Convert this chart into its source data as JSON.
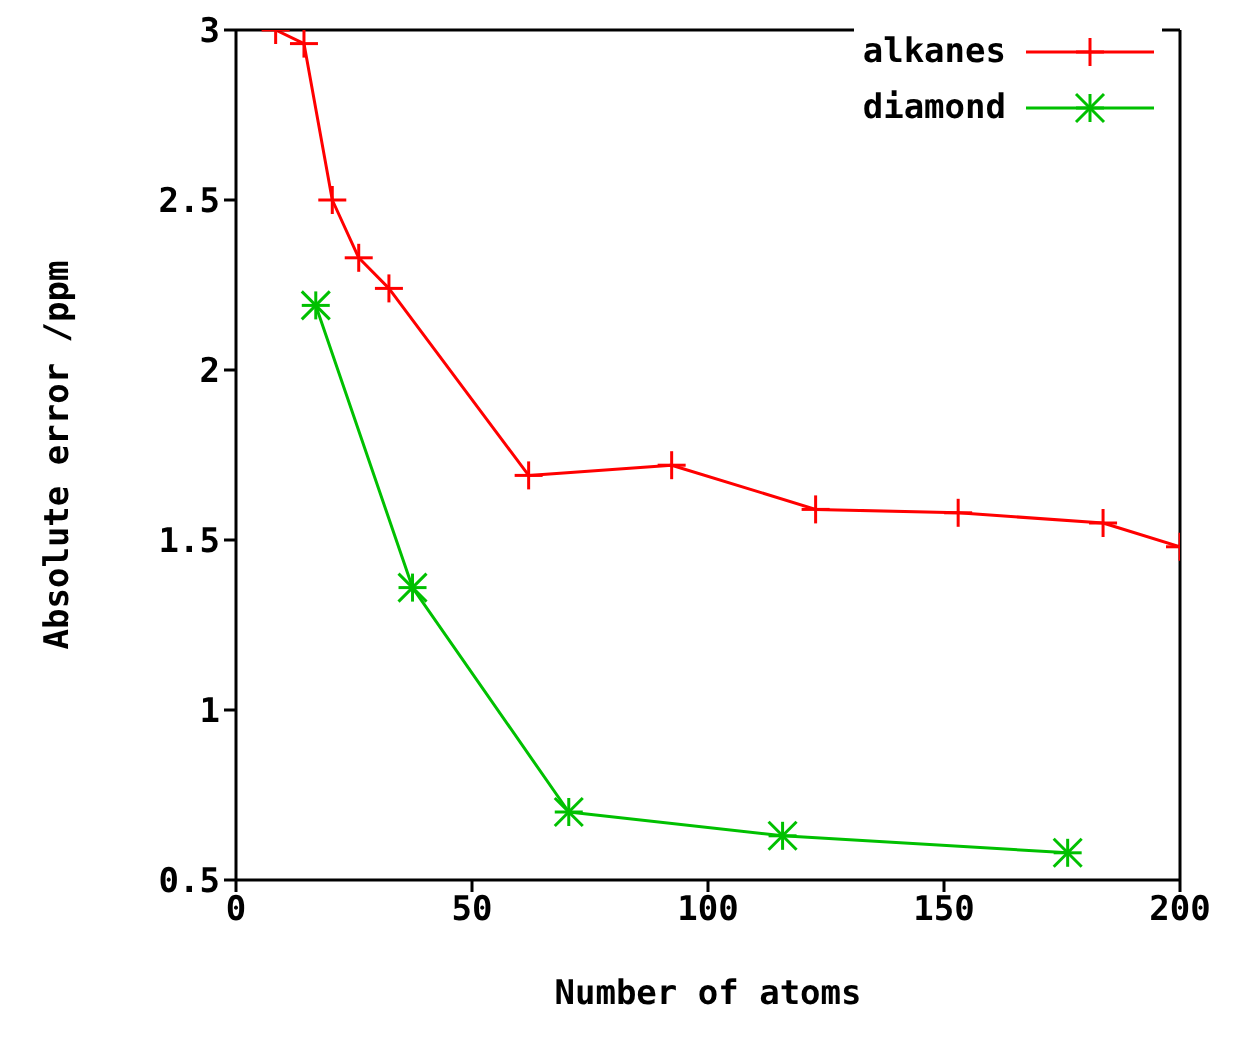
{
  "chart_data": {
    "type": "line",
    "xlabel": "Number of atoms",
    "ylabel": "Absolute error /ppm",
    "xlim": [
      0,
      200
    ],
    "xticks": [
      0,
      50,
      100,
      150,
      200
    ],
    "ylim": [
      0.5,
      3
    ],
    "yticks": [
      0.5,
      1,
      1.5,
      2,
      2.5,
      3
    ],
    "grid": false,
    "legend": "top right",
    "series": [
      {
        "name": "alkanes",
        "color": "#ff0000",
        "marker": "cross",
        "x": [
          8.4,
          14.4,
          20.4,
          26,
          32.4,
          62,
          92.3,
          122.8,
          153,
          183.7,
          200
        ],
        "values": [
          3.0,
          2.96,
          2.5,
          2.33,
          2.24,
          1.69,
          1.72,
          1.59,
          1.58,
          1.55,
          1.48
        ]
      },
      {
        "name": "diamond",
        "color": "#00c000",
        "marker": "cross",
        "x": [
          16.9,
          37.4,
          70.5,
          115.8,
          176.2
        ],
        "values": [
          2.19,
          1.36,
          0.7,
          0.63,
          0.58
        ]
      }
    ]
  }
}
